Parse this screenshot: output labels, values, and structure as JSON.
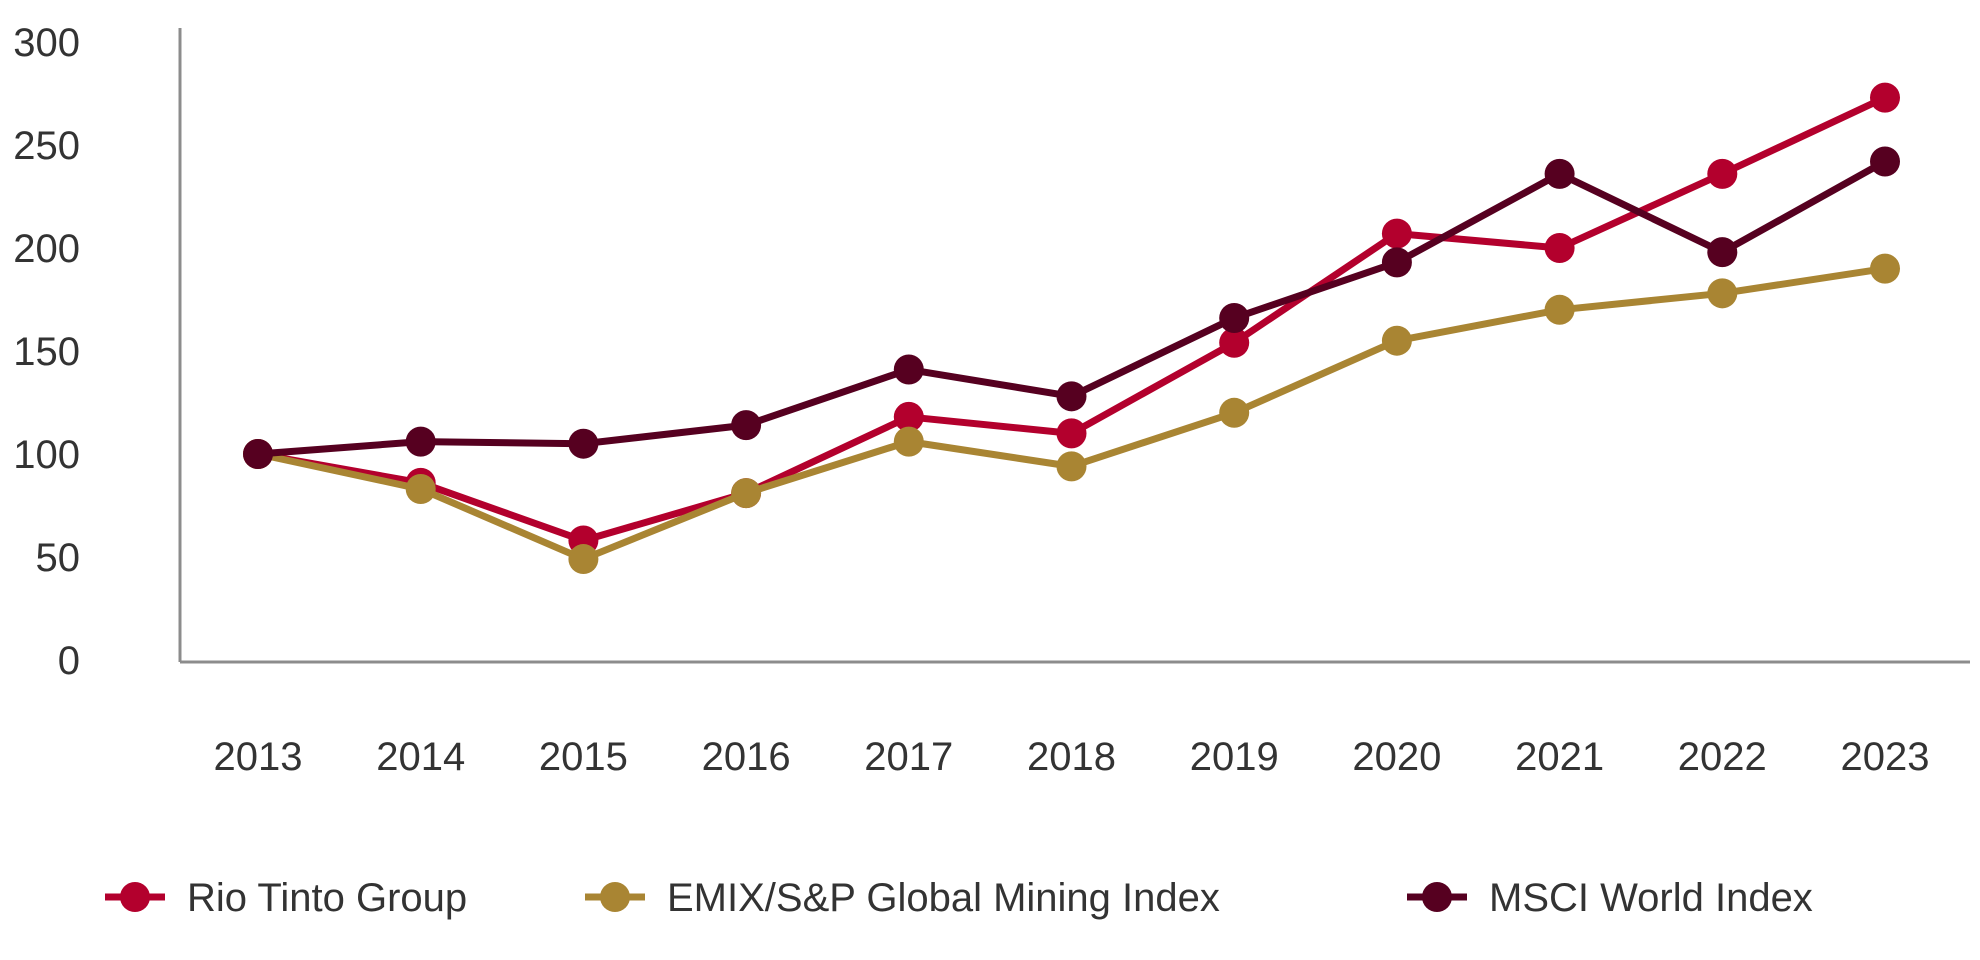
{
  "chart_data": {
    "type": "line",
    "title": "",
    "xlabel": "",
    "ylabel": "",
    "ylim": [
      0,
      300
    ],
    "yticks": [
      0,
      50,
      100,
      150,
      200,
      250,
      300
    ],
    "grid": false,
    "legend_position": "bottom",
    "categories": [
      "2013",
      "2014",
      "2015",
      "2016",
      "2017",
      "2018",
      "2019",
      "2020",
      "2021",
      "2022",
      "2023"
    ],
    "series": [
      {
        "name": "Rio Tinto Group",
        "color": "#b3002d",
        "values": [
          100,
          86,
          58,
          81,
          118,
          110,
          154,
          207,
          200,
          236,
          273
        ]
      },
      {
        "name": "EMIX/S&P  Global Mining Index",
        "color": "#a98533",
        "values": [
          100,
          83,
          49,
          81,
          106,
          94,
          120,
          155,
          170,
          178,
          190
        ]
      },
      {
        "name": "MSCI World Index",
        "color": "#560020",
        "values": [
          100,
          106,
          105,
          114,
          141,
          128,
          166,
          193,
          236,
          198,
          242
        ]
      }
    ]
  }
}
